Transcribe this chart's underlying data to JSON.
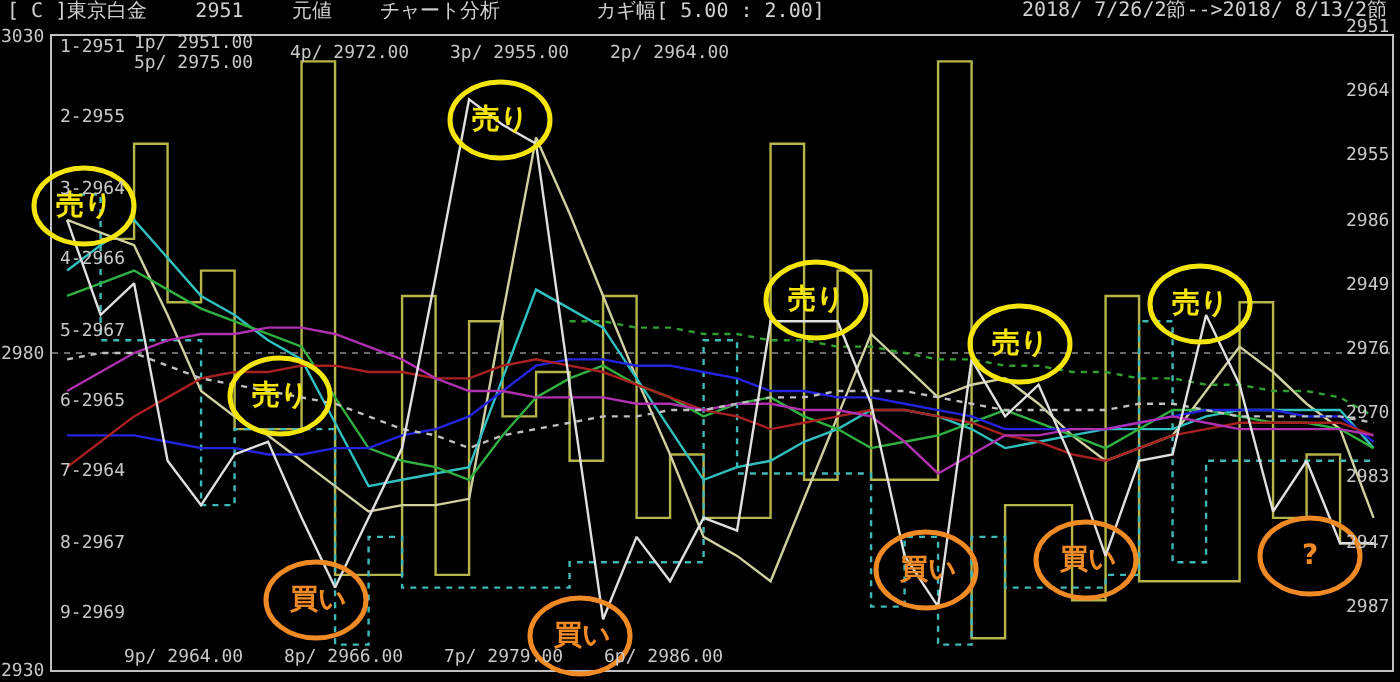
{
  "chart_data": {
    "type": "line",
    "title": "[ C ]東京白金    2951    元値    チャート分析        カギ幅[ 5.00 : 2.00]",
    "subtitle": "2018/ 7/26/2節-->2018/ 8/13/2節",
    "categories": [
      null,
      null,
      null,
      null,
      null,
      null,
      null,
      null,
      null,
      null,
      null,
      null,
      null,
      null,
      null,
      null,
      null,
      null,
      null,
      null,
      null,
      null,
      null,
      null,
      null,
      null,
      null,
      null,
      null,
      null,
      null,
      null,
      null,
      null,
      null,
      null,
      null,
      null,
      null,
      null
    ],
    "tick_labels": "y",
    "ylim": [
      2930,
      3030
    ],
    "yticks": [
      3030,
      2980,
      2930
    ],
    "grid": "y",
    "series": [
      {
        "type": "step",
        "color": "#b5b54a",
        "line_style": "solid",
        "values": [
          null,
          2998,
          3013,
          2988,
          2993,
          2968,
          2968,
          3026,
          2945,
          2945,
          2989,
          2945,
          2985,
          2970,
          2977,
          2963,
          2989,
          2954,
          2964,
          2954,
          2954,
          3013,
          2960,
          2993,
          2960,
          2960,
          3026,
          2935,
          2956,
          2956,
          2941,
          2989,
          2944,
          2944,
          2944,
          2988,
          2954,
          2964,
          2950,
          2950
        ]
      },
      {
        "type": "step",
        "color": "#3fb8b8",
        "line_style": "dotted",
        "values": [
          3005,
          2982,
          2982,
          2982,
          2956,
          2968,
          2968,
          2968,
          2934,
          2951,
          2943,
          2943,
          2943,
          2943,
          2943,
          2947,
          2947,
          2947,
          2947,
          2982,
          2961,
          2961,
          2961,
          2961,
          2940,
          2951,
          2934,
          2951,
          2943,
          2943,
          2943,
          2945,
          2985,
          2947,
          2963,
          2963,
          2963,
          2963,
          2963,
          2963
        ]
      },
      {
        "color": "#d0d0a0",
        "line_style": "solid",
        "values": [
          3001,
          2999,
          2997,
          2986,
          2974,
          2970,
          2967,
          2963,
          2959,
          2955,
          2956,
          2956,
          2957,
          2986,
          3014,
          3002,
          2989,
          2976,
          2964,
          2951,
          2948,
          2944,
          2957,
          2970,
          2983,
          2978,
          2973,
          2975,
          2976,
          2972,
          2967,
          2963,
          2965,
          2967,
          2974,
          2981,
          2977,
          2972,
          2968,
          2954
        ]
      },
      {
        "color": "#30c0c0",
        "line_style": "solid",
        "values": [
          2993,
          2997,
          3001,
          2995,
          2989,
          2986,
          2982,
          2979,
          2969,
          2959,
          2960,
          2961,
          2962,
          2976,
          2990,
          2987,
          2984,
          2976,
          2968,
          2960,
          2962,
          2963,
          2966,
          2968,
          2971,
          2971,
          2970,
          2968,
          2965,
          2966,
          2967,
          2968,
          2968,
          2968,
          2970,
          2971,
          2971,
          2971,
          2971,
          2965
        ]
      },
      {
        "color": "#30b040",
        "line_style": "solid",
        "values": [
          2989,
          2991,
          2993,
          2990,
          2987,
          2985,
          2983,
          2981,
          2973,
          2965,
          2963,
          2962,
          2960,
          2967,
          2973,
          2976,
          2978,
          2975,
          2973,
          2970,
          2972,
          2973,
          2970,
          2968,
          2965,
          2966,
          2967,
          2969,
          2971,
          2969,
          2967,
          2965,
          2968,
          2971,
          2971,
          2970,
          2969,
          2969,
          2968,
          2965
        ]
      },
      {
        "color": "#2424e0",
        "line_style": "solid",
        "values": [
          2967,
          2967,
          2967,
          2966,
          2965,
          2965,
          2964,
          2964,
          2965,
          2965,
          2967,
          2968,
          2970,
          2974,
          2978,
          2979,
          2979,
          2978,
          2978,
          2977,
          2976,
          2974,
          2974,
          2973,
          2973,
          2972,
          2971,
          2970,
          2968,
          2968,
          2968,
          2968,
          2969,
          2970,
          2971,
          2971,
          2971,
          2970,
          2970,
          2966
        ]
      },
      {
        "color": "#a82020",
        "line_style": "solid",
        "values": [
          2962,
          2966,
          2970,
          2973,
          2976,
          2977,
          2977,
          2978,
          2978,
          2977,
          2977,
          2976,
          2976,
          2978,
          2979,
          2978,
          2977,
          2975,
          2973,
          2971,
          2970,
          2968,
          2969,
          2970,
          2971,
          2971,
          2970,
          2969,
          2967,
          2966,
          2964,
          2963,
          2965,
          2967,
          2968,
          2969,
          2969,
          2969,
          2969,
          2967
        ]
      },
      {
        "color": "#b030b0",
        "line_style": "solid",
        "values": [
          2974,
          2977,
          2980,
          2982,
          2983,
          2983,
          2984,
          2984,
          2983,
          2981,
          2979,
          2976,
          2974,
          2974,
          2973,
          2973,
          2973,
          2972,
          2972,
          2971,
          2972,
          2972,
          2971,
          2971,
          2970,
          2966,
          2961,
          2964,
          2967,
          2967,
          2968,
          2968,
          2969,
          2970,
          2969,
          2968,
          2968,
          2968,
          2968,
          2967
        ]
      },
      {
        "color": "#c0c0c0",
        "line_style": "dotted",
        "values": [
          2979,
          2980,
          2980,
          2978,
          2976,
          2975,
          2974,
          2973,
          2972,
          2970,
          2968,
          2967,
          2965,
          2967,
          2968,
          2969,
          2970,
          2970,
          2971,
          2971,
          2972,
          2973,
          2973,
          2974,
          2974,
          2974,
          2973,
          2972,
          2971,
          2971,
          2971,
          2971,
          2972,
          2972,
          2971,
          2970,
          2970,
          2970,
          2970,
          2969
        ]
      },
      {
        "color": "#30a030",
        "line_style": "dotted",
        "values": [
          null,
          null,
          null,
          null,
          null,
          null,
          null,
          null,
          null,
          null,
          null,
          null,
          null,
          null,
          null,
          2985,
          2985,
          2984,
          2984,
          2983,
          2983,
          2982,
          2982,
          2981,
          2981,
          2980,
          2979,
          2979,
          2978,
          2978,
          2977,
          2977,
          2976,
          2976,
          2975,
          2975,
          2974,
          2974,
          2973,
          2970
        ]
      },
      {
        "color": "#e0e0e0",
        "line_style": "solid",
        "values": [
          3001,
          2986,
          2991,
          2963,
          2956,
          2964,
          2966,
          2954,
          2943,
          2954,
          2965,
          2992,
          3020,
          3016,
          3013,
          2975,
          2938,
          2951,
          2944,
          2954,
          2952,
          2985,
          2985,
          2985,
          2972,
          2948,
          2940,
          2979,
          2970,
          2975,
          2963,
          2948,
          2963,
          2964,
          2986,
          2975,
          2955,
          2963,
          2950,
          2950
        ]
      }
    ],
    "annotations": [
      "売り",
      "売り",
      "売り",
      "売り",
      "売り",
      "売り",
      "買い",
      "買い",
      "買い",
      "買い",
      "?",
      "1p/ 2951.00",
      "5p/ 2975.00",
      "4p/ 2972.00",
      "3p/ 2955.00",
      "2p/ 2964.00",
      "9p/ 2964.00",
      "8p/ 2966.00",
      "7p/ 2979.00",
      "6p/ 2986.00",
      "1-2951",
      "2-2955",
      "3-2964",
      "4-2966",
      "5-2967",
      "6-2965",
      "7-2964",
      "8-2967",
      "9-2969",
      "2951",
      "2964",
      "2955",
      "2986",
      "2949",
      "2976",
      "2970",
      "2983",
      "2947",
      "2987"
    ]
  }
}
